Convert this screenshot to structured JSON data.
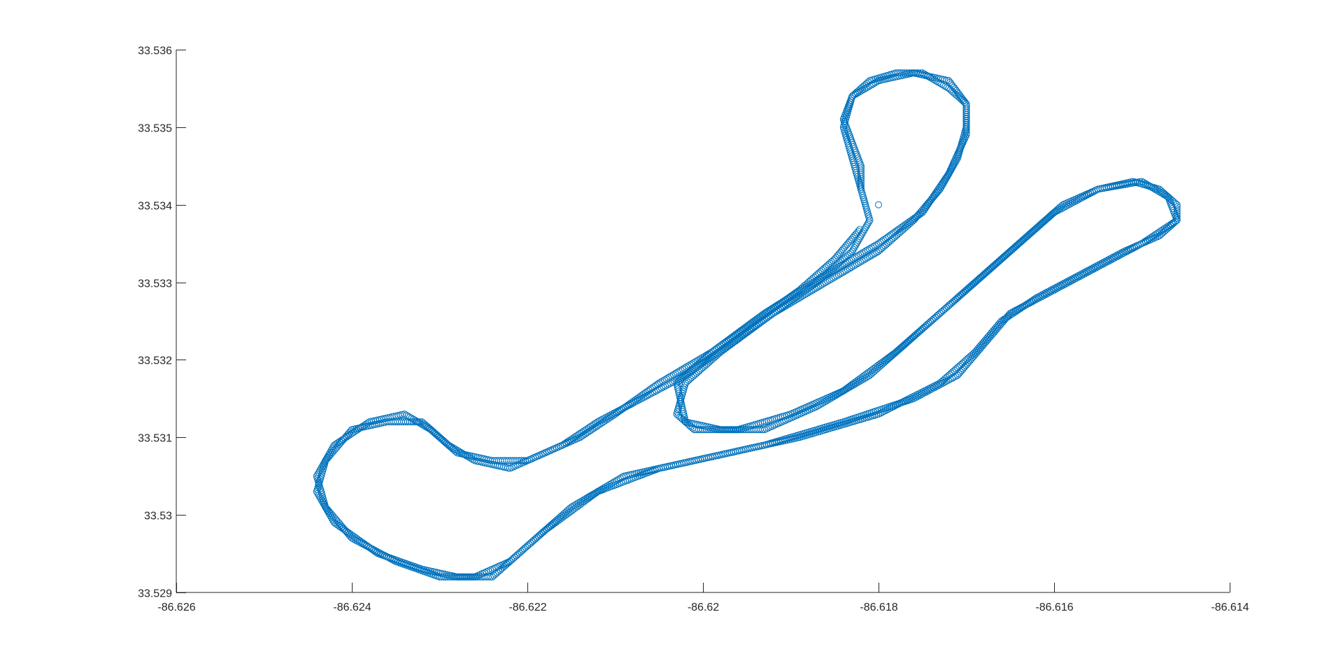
{
  "chart_data": {
    "type": "scatter",
    "title": "",
    "xlabel": "",
    "ylabel": "",
    "xlim": [
      -86.626,
      -86.614
    ],
    "ylim": [
      33.529,
      33.536
    ],
    "grid": false,
    "legend": "none",
    "marker": "circle-open",
    "x_ticks": [
      -86.626,
      -86.624,
      -86.622,
      -86.62,
      -86.618,
      -86.616,
      -86.614
    ],
    "x_tick_labels": [
      "-86.626",
      "-86.624",
      "-86.622",
      "-86.62",
      "-86.618",
      "-86.616",
      "-86.614"
    ],
    "y_ticks": [
      33.529,
      33.53,
      33.531,
      33.532,
      33.533,
      33.534,
      33.535,
      33.536
    ],
    "y_tick_labels": [
      "33.529",
      "33.53",
      "33.531",
      "33.532",
      "33.533",
      "33.534",
      "33.535",
      "33.536"
    ],
    "colors": {
      "series": "#0072BD",
      "axes": "#262626",
      "background": "#ffffff"
    },
    "series": [
      {
        "points": [
          [
            -86.618,
            33.534
          ],
          [
            -86.6182,
            33.5342
          ],
          [
            -86.6182,
            33.5345
          ],
          [
            -86.6183,
            33.5348
          ],
          [
            -86.6184,
            33.5351
          ],
          [
            -86.6183,
            33.5354
          ],
          [
            -86.6181,
            33.5356
          ],
          [
            -86.6178,
            33.5357
          ],
          [
            -86.6175,
            33.5357
          ],
          [
            -86.6172,
            33.5355
          ],
          [
            -86.617,
            33.5353
          ],
          [
            -86.617,
            33.535
          ],
          [
            -86.6171,
            33.5346
          ],
          [
            -86.6173,
            33.5342
          ],
          [
            -86.6176,
            33.5338
          ],
          [
            -86.618,
            33.5334
          ],
          [
            -86.6186,
            33.533
          ],
          [
            -86.6192,
            33.5326
          ],
          [
            -86.6198,
            33.5321
          ],
          [
            -86.6202,
            33.5317
          ],
          [
            -86.6203,
            33.5313
          ],
          [
            -86.6201,
            33.5311
          ],
          [
            -86.6196,
            33.5311
          ],
          [
            -86.619,
            33.5313
          ],
          [
            -86.6184,
            33.5316
          ],
          [
            -86.6178,
            33.5321
          ],
          [
            -86.6173,
            33.5326
          ],
          [
            -86.6168,
            33.5331
          ],
          [
            -86.6163,
            33.5336
          ],
          [
            -86.6159,
            33.534
          ],
          [
            -86.6155,
            33.5342
          ],
          [
            -86.6151,
            33.5343
          ],
          [
            -86.6148,
            33.5342
          ],
          [
            -86.6146,
            33.534
          ],
          [
            -86.6146,
            33.5338
          ],
          [
            -86.6148,
            33.5336
          ],
          [
            -86.6152,
            33.5334
          ],
          [
            -86.6157,
            33.5331
          ],
          [
            -86.6162,
            33.5328
          ],
          [
            -86.6166,
            33.5325
          ],
          [
            -86.6169,
            33.5321
          ],
          [
            -86.6173,
            33.5317
          ],
          [
            -86.618,
            33.5313
          ],
          [
            -86.6189,
            33.531
          ],
          [
            -86.6197,
            33.5308
          ],
          [
            -86.6205,
            33.5306
          ],
          [
            -86.6212,
            33.5303
          ],
          [
            -86.6218,
            33.5298
          ],
          [
            -86.6222,
            33.5294
          ],
          [
            -86.6226,
            33.5292
          ],
          [
            -86.623,
            33.5292
          ],
          [
            -86.6235,
            33.5294
          ],
          [
            -86.624,
            33.5297
          ],
          [
            -86.6243,
            33.5301
          ],
          [
            -86.6244,
            33.5305
          ],
          [
            -86.6242,
            33.5309
          ],
          [
            -86.6238,
            33.5312
          ],
          [
            -86.6234,
            33.5313
          ],
          [
            -86.6231,
            33.5311
          ],
          [
            -86.6228,
            33.5308
          ],
          [
            -86.6224,
            33.5307
          ],
          [
            -86.622,
            33.5307
          ],
          [
            -86.6216,
            33.5309
          ],
          [
            -86.6212,
            33.5312
          ],
          [
            -86.6207,
            33.5315
          ],
          [
            -86.6202,
            33.5318
          ],
          [
            -86.6197,
            33.5322
          ],
          [
            -86.6192,
            33.5326
          ],
          [
            -86.6187,
            33.533
          ],
          [
            -86.6183,
            33.5334
          ],
          [
            -86.6181,
            33.5338
          ],
          [
            -86.6182,
            33.5342
          ],
          [
            -86.6183,
            33.5346
          ],
          [
            -86.6184,
            33.535
          ],
          [
            -86.6183,
            33.5354
          ],
          [
            -86.618,
            33.5356
          ],
          [
            -86.6176,
            33.5357
          ],
          [
            -86.6172,
            33.5356
          ],
          [
            -86.617,
            33.5353
          ],
          [
            -86.617,
            33.5349
          ],
          [
            -86.6172,
            33.5344
          ],
          [
            -86.6175,
            33.5339
          ],
          [
            -86.618,
            33.5335
          ],
          [
            -86.6186,
            33.5331
          ],
          [
            -86.6193,
            33.5326
          ],
          [
            -86.6199,
            33.5321
          ],
          [
            -86.6203,
            33.5317
          ],
          [
            -86.6202,
            33.5312
          ],
          [
            -86.6198,
            33.5311
          ],
          [
            -86.6193,
            33.5311
          ],
          [
            -86.6187,
            33.5314
          ],
          [
            -86.6181,
            33.5318
          ],
          [
            -86.6175,
            33.5324
          ],
          [
            -86.6169,
            33.533
          ],
          [
            -86.6164,
            33.5335
          ],
          [
            -86.616,
            33.5339
          ],
          [
            -86.6155,
            33.5342
          ],
          [
            -86.615,
            33.5343
          ],
          [
            -86.6147,
            33.5341
          ],
          [
            -86.6146,
            33.5338
          ],
          [
            -86.615,
            33.5335
          ],
          [
            -86.6155,
            33.5332
          ],
          [
            -86.616,
            33.5329
          ],
          [
            -86.6165,
            33.5326
          ],
          [
            -86.6168,
            33.5322
          ],
          [
            -86.6171,
            33.5318
          ],
          [
            -86.6176,
            33.5315
          ],
          [
            -86.6184,
            33.5312
          ],
          [
            -86.6193,
            33.5309
          ],
          [
            -86.6201,
            33.5307
          ],
          [
            -86.6209,
            33.5305
          ],
          [
            -86.6215,
            33.5301
          ],
          [
            -86.622,
            33.5296
          ],
          [
            -86.6224,
            33.5292
          ],
          [
            -86.6228,
            33.5292
          ],
          [
            -86.6232,
            33.5293
          ],
          [
            -86.6237,
            33.5295
          ],
          [
            -86.6242,
            33.5299
          ],
          [
            -86.6244,
            33.5303
          ],
          [
            -86.6243,
            33.5307
          ],
          [
            -86.624,
            33.5311
          ],
          [
            -86.6236,
            33.5312
          ],
          [
            -86.6232,
            33.5312
          ],
          [
            -86.6229,
            33.5309
          ],
          [
            -86.6226,
            33.5307
          ],
          [
            -86.6222,
            33.5306
          ],
          [
            -86.6218,
            33.5308
          ],
          [
            -86.6214,
            33.531
          ],
          [
            -86.621,
            33.5313
          ],
          [
            -86.6205,
            33.5317
          ],
          [
            -86.6199,
            33.5321
          ],
          [
            -86.6194,
            33.5325
          ],
          [
            -86.6189,
            33.5329
          ],
          [
            -86.6185,
            33.5333
          ],
          [
            -86.6182,
            33.5337
          ]
        ]
      }
    ]
  }
}
